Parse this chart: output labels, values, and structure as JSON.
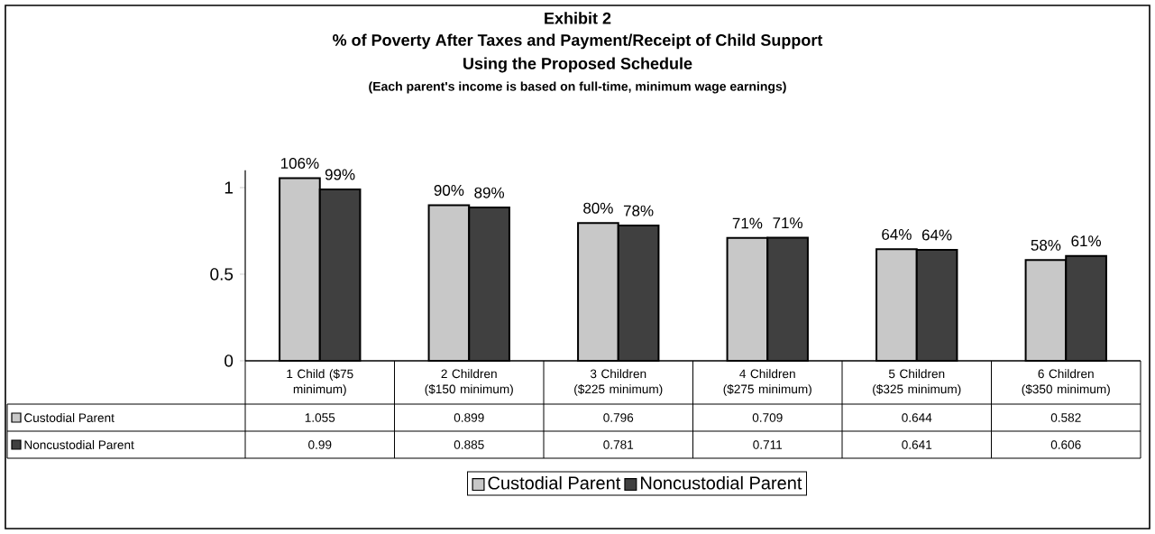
{
  "chart_data": {
    "type": "bar",
    "title": "Exhibit 2",
    "subtitle": "% of Poverty After Taxes and Payment/Receipt of Child Support",
    "annotations": [
      "Using the Proposed Schedule",
      "(Each parent's income is based on full-time, minimum wage earnings)",
      {
        "text": "106%",
        "x": "1 Child ($75 minimum)",
        "y": 1.055
      },
      {
        "text": "99%",
        "x": "1 Child ($75 minimum)",
        "y": 0.99
      },
      {
        "text": "90%",
        "x": "2 Children ($150 minimum)",
        "y": 0.899
      },
      {
        "text": "89%",
        "x": "2 Children ($150 minimum)",
        "y": 0.885
      },
      {
        "text": "80%",
        "x": "3 Children ($225 minimum)",
        "y": 0.796
      },
      {
        "text": "78%",
        "x": "3 Children ($225 minimum)",
        "y": 0.781
      },
      {
        "text": "71%",
        "x": "4 Children ($275 minimum)",
        "y": 0.709
      },
      {
        "text": "71%",
        "x": "4 Children ($275 minimum)",
        "y": 0.711
      },
      {
        "text": "64%",
        "x": "5 Children ($325 minimum)",
        "y": 0.644
      },
      {
        "text": "64%",
        "x": "5 Children ($325 minimum)",
        "y": 0.641
      },
      {
        "text": "58%",
        "x": "6 Children ($350 minimum)",
        "y": 0.582
      },
      {
        "text": "61%",
        "x": "6 Children ($350 minimum)",
        "y": 0.606
      }
    ],
    "categories": [
      "1 Child ($75 minimum)",
      "2 Children ($150 minimum)",
      "3 Children ($225 minimum)",
      "4 Children ($275 minimum)",
      "5 Children ($325 minimum)",
      "6 Children ($350 minimum)"
    ],
    "series": [
      {
        "name": "Custodial Parent",
        "color": "#c8c8c8",
        "values": [
          1.055,
          0.899,
          0.796,
          0.709,
          0.644,
          0.582
        ]
      },
      {
        "name": "Noncustodial Parent",
        "color": "#404040",
        "values": [
          0.99,
          0.885,
          0.781,
          0.711,
          0.641,
          0.606
        ]
      }
    ],
    "ylim": [
      0,
      1.1
    ],
    "yticks": [
      0,
      0.5,
      1
    ],
    "data_labels": true,
    "legend": "bottom"
  }
}
